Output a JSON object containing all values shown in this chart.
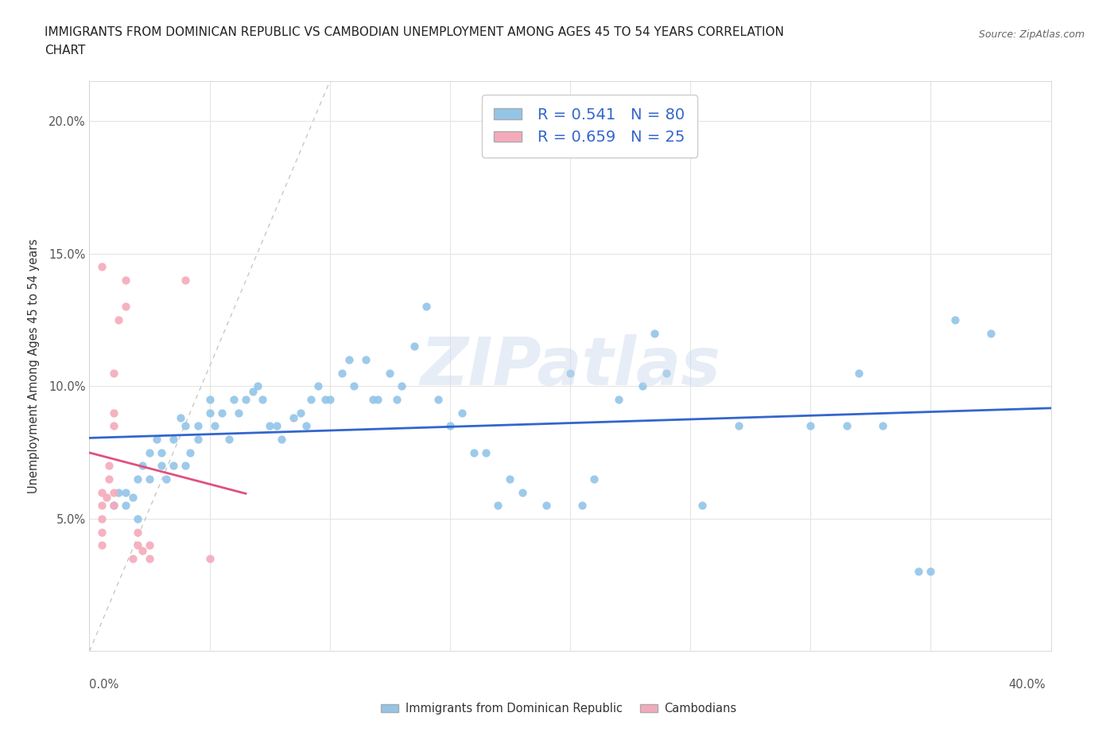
{
  "title_line1": "IMMIGRANTS FROM DOMINICAN REPUBLIC VS CAMBODIAN UNEMPLOYMENT AMONG AGES 45 TO 54 YEARS CORRELATION",
  "title_line2": "CHART",
  "source": "Source: ZipAtlas.com",
  "ylabel": "Unemployment Among Ages 45 to 54 years",
  "legend_blue_label": "Immigrants from Dominican Republic",
  "legend_pink_label": "Cambodians",
  "R_blue": "0.541",
  "N_blue": "80",
  "R_pink": "0.659",
  "N_pink": "25",
  "blue_color": "#92C5E8",
  "pink_color": "#F4AABB",
  "blue_line_color": "#3366CC",
  "pink_line_color": "#E05080",
  "diag_color": "#C8C8C8",
  "xlim": [
    0.0,
    0.4
  ],
  "ylim": [
    0.0,
    0.215
  ],
  "yticks": [
    0.05,
    0.1,
    0.15,
    0.2
  ],
  "xticks": [
    0.0,
    0.05,
    0.1,
    0.15,
    0.2,
    0.25,
    0.3,
    0.35,
    0.4
  ],
  "blue_x": [
    0.01,
    0.012,
    0.015,
    0.015,
    0.018,
    0.02,
    0.02,
    0.022,
    0.025,
    0.025,
    0.028,
    0.03,
    0.03,
    0.032,
    0.035,
    0.035,
    0.038,
    0.04,
    0.04,
    0.042,
    0.045,
    0.045,
    0.05,
    0.05,
    0.052,
    0.055,
    0.058,
    0.06,
    0.062,
    0.065,
    0.068,
    0.07,
    0.072,
    0.075,
    0.078,
    0.08,
    0.085,
    0.088,
    0.09,
    0.092,
    0.095,
    0.098,
    0.1,
    0.105,
    0.108,
    0.11,
    0.115,
    0.118,
    0.12,
    0.125,
    0.128,
    0.13,
    0.135,
    0.14,
    0.145,
    0.15,
    0.155,
    0.16,
    0.165,
    0.17,
    0.175,
    0.18,
    0.19,
    0.2,
    0.205,
    0.21,
    0.22,
    0.23,
    0.235,
    0.24,
    0.255,
    0.27,
    0.3,
    0.315,
    0.32,
    0.33,
    0.345,
    0.35,
    0.36,
    0.375
  ],
  "blue_y": [
    0.055,
    0.06,
    0.06,
    0.055,
    0.058,
    0.05,
    0.065,
    0.07,
    0.065,
    0.075,
    0.08,
    0.07,
    0.075,
    0.065,
    0.07,
    0.08,
    0.088,
    0.085,
    0.07,
    0.075,
    0.08,
    0.085,
    0.09,
    0.095,
    0.085,
    0.09,
    0.08,
    0.095,
    0.09,
    0.095,
    0.098,
    0.1,
    0.095,
    0.085,
    0.085,
    0.08,
    0.088,
    0.09,
    0.085,
    0.095,
    0.1,
    0.095,
    0.095,
    0.105,
    0.11,
    0.1,
    0.11,
    0.095,
    0.095,
    0.105,
    0.095,
    0.1,
    0.115,
    0.13,
    0.095,
    0.085,
    0.09,
    0.075,
    0.075,
    0.055,
    0.065,
    0.06,
    0.055,
    0.105,
    0.055,
    0.065,
    0.095,
    0.1,
    0.12,
    0.105,
    0.055,
    0.085,
    0.085,
    0.085,
    0.105,
    0.085,
    0.03,
    0.03,
    0.125,
    0.12
  ],
  "pink_x": [
    0.005,
    0.005,
    0.005,
    0.005,
    0.005,
    0.007,
    0.008,
    0.01,
    0.01,
    0.01,
    0.01,
    0.01,
    0.012,
    0.015,
    0.015,
    0.018,
    0.02,
    0.02,
    0.022,
    0.025,
    0.025,
    0.04,
    0.05,
    0.005,
    0.008
  ],
  "pink_y": [
    0.04,
    0.045,
    0.05,
    0.055,
    0.06,
    0.058,
    0.065,
    0.055,
    0.06,
    0.085,
    0.09,
    0.105,
    0.125,
    0.13,
    0.14,
    0.035,
    0.04,
    0.045,
    0.038,
    0.035,
    0.04,
    0.14,
    0.035,
    0.145,
    0.07
  ]
}
